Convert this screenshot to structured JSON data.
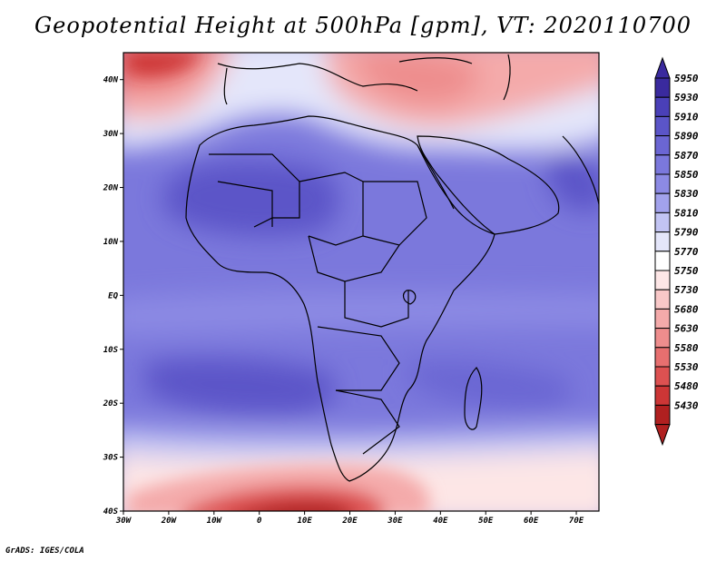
{
  "title": "Geopotential Height at 500hPa [gpm], VT: 2020110700",
  "footer": "GrADS: IGES/COLA",
  "map": {
    "lon_range": [
      -30,
      75
    ],
    "lat_range": [
      -40,
      45
    ],
    "y_ticks": [
      "40N",
      "30N",
      "20N",
      "10N",
      "EQ",
      "10S",
      "20S",
      "30S",
      "40S"
    ],
    "x_ticks": [
      "30W",
      "20W",
      "10W",
      "0",
      "10E",
      "20E",
      "30E",
      "40E",
      "50E",
      "60E",
      "70E"
    ]
  },
  "colorbar": {
    "levels": [
      "5950",
      "5930",
      "5910",
      "5890",
      "5870",
      "5850",
      "5830",
      "5810",
      "5790",
      "5770",
      "5750",
      "5730",
      "5680",
      "5630",
      "5580",
      "5530",
      "5480",
      "5430"
    ],
    "colors": [
      "#3a2a9e",
      "#4a40b8",
      "#5b55c8",
      "#6b66d3",
      "#7b78dc",
      "#8c8ae4",
      "#a2a2ec",
      "#c2c4f3",
      "#e4e6fa",
      "#ffffff",
      "#fde6e6",
      "#f9c8c8",
      "#f4aaaa",
      "#ee8d8d",
      "#e76f6f",
      "#dd5151",
      "#cc3636",
      "#b02020"
    ]
  }
}
